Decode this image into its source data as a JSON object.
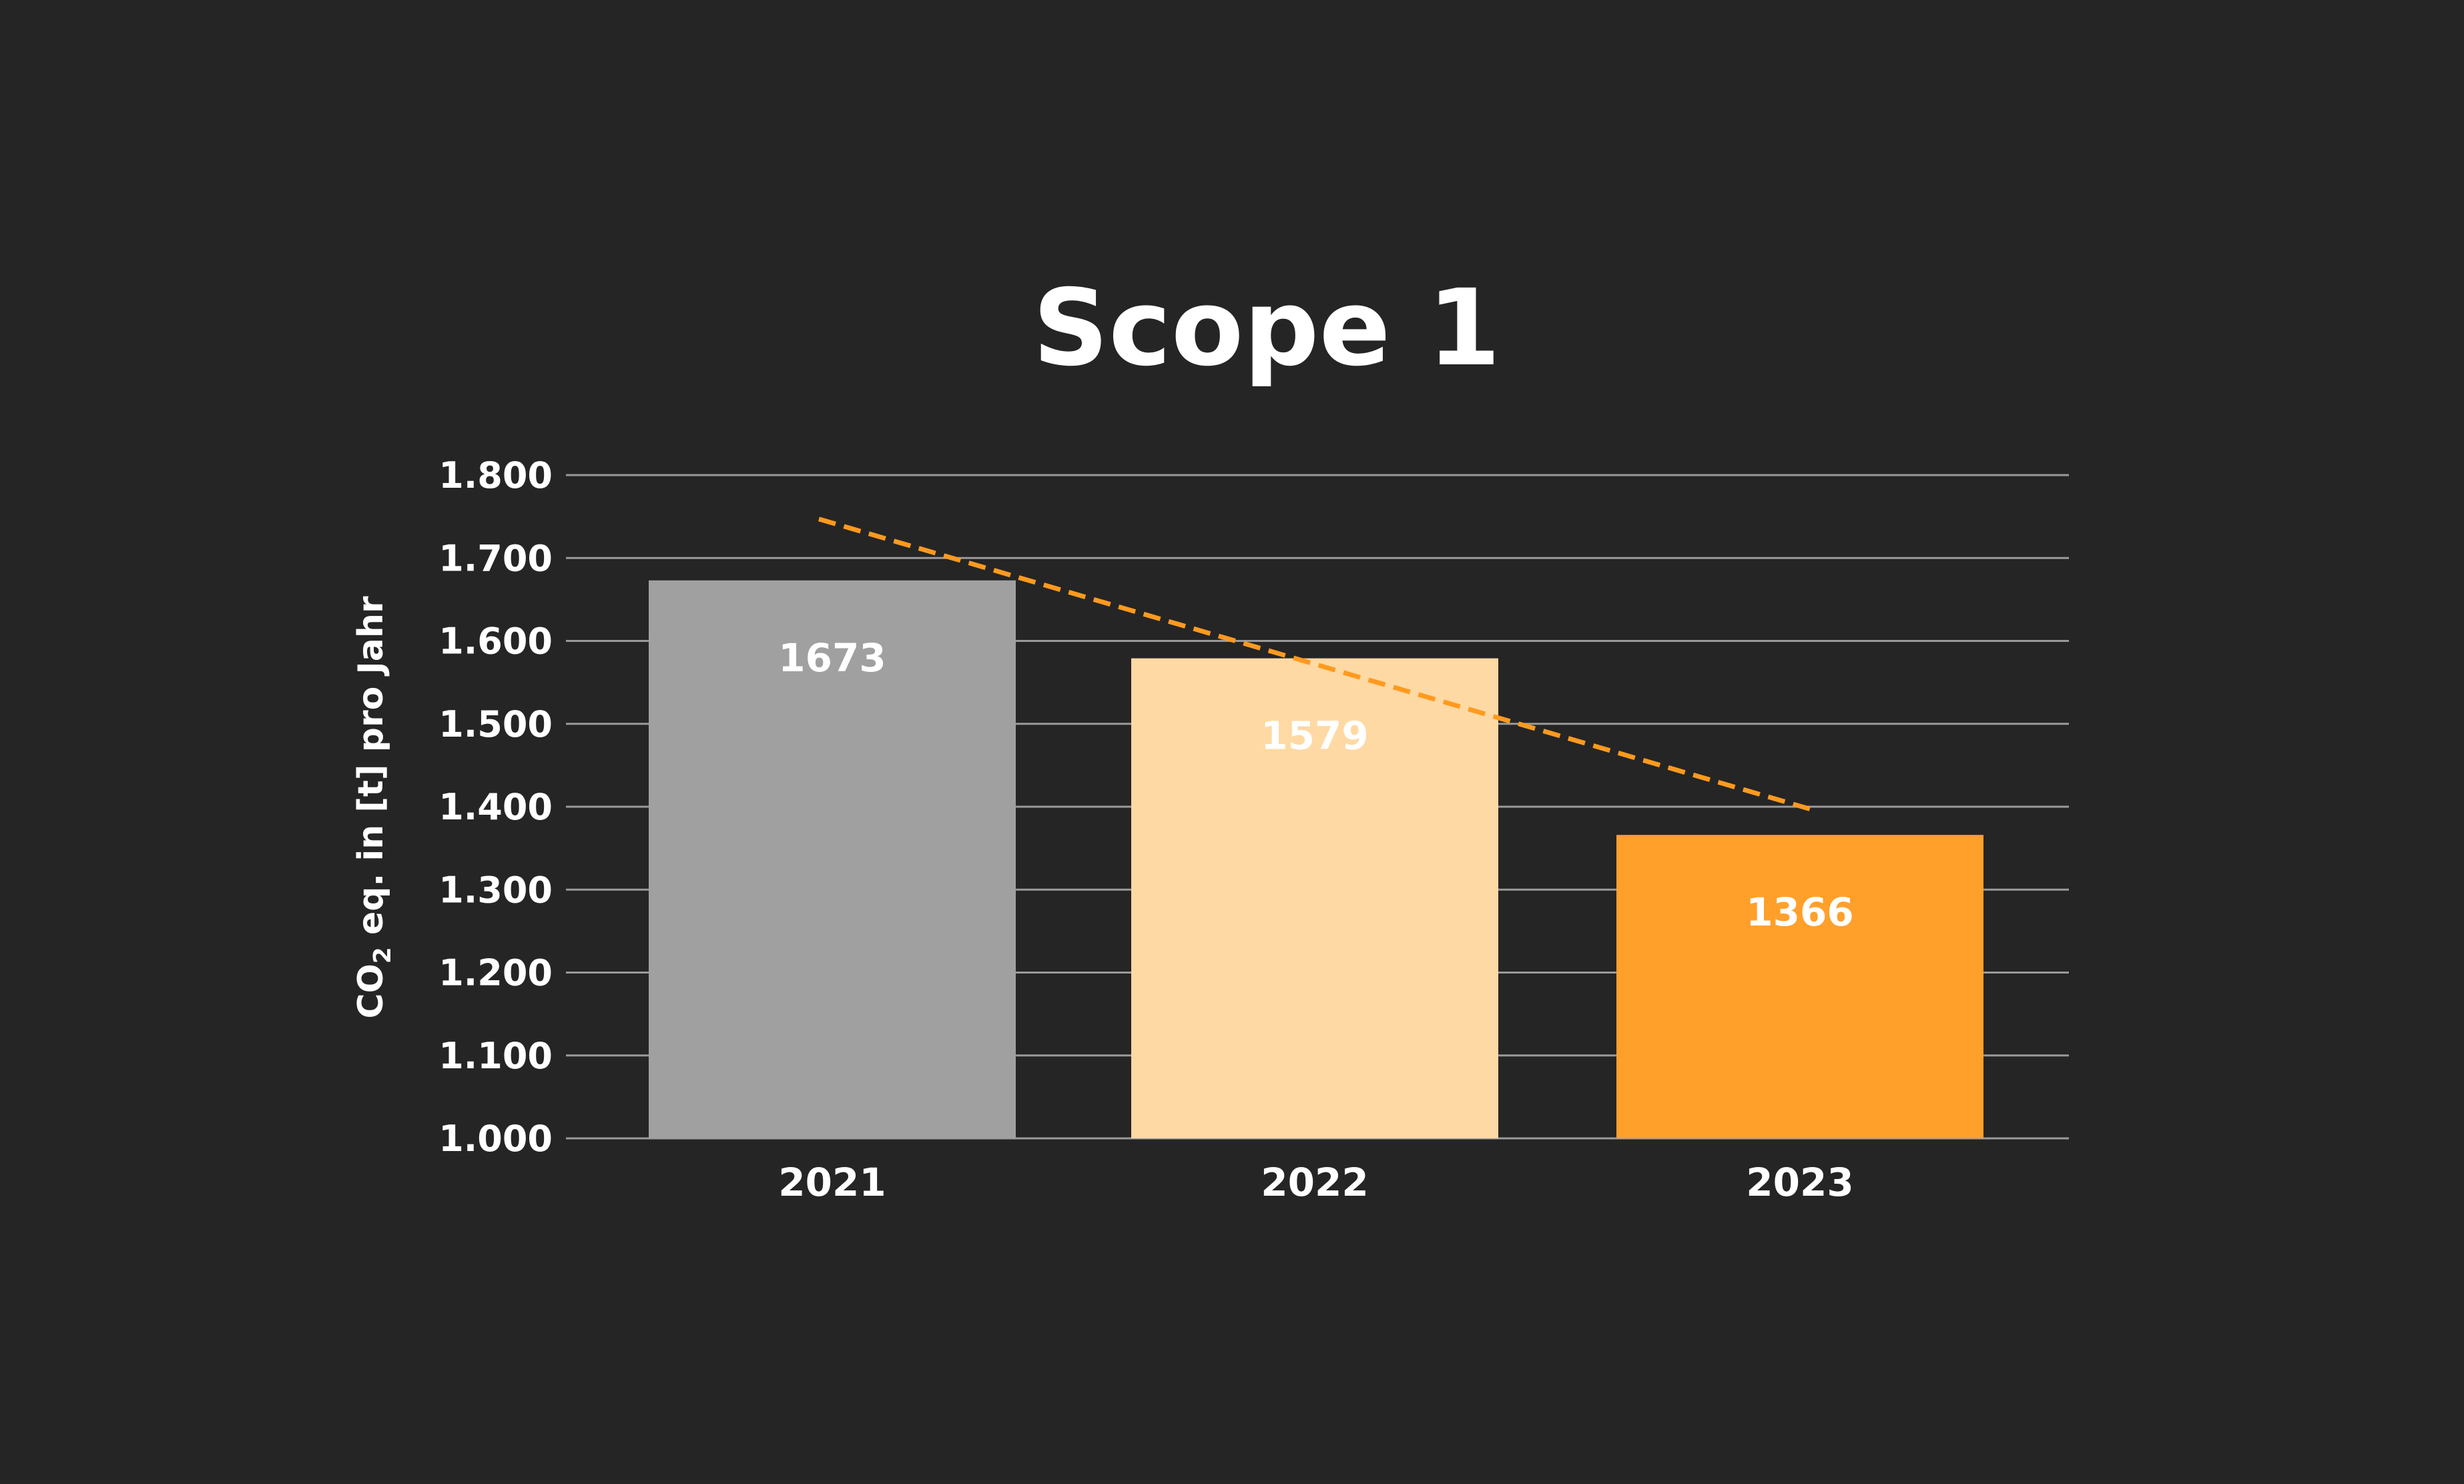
{
  "chart_data": {
    "type": "bar",
    "title": "Scope 1",
    "ylabel": "CO₂ eq. in [t] pro Jahr",
    "ylabel_parts": {
      "pre": "CO",
      "sub": "2",
      "post": " eq. in [t] pro Jahr"
    },
    "xlabel": "",
    "categories": [
      "2021",
      "2022",
      "2023"
    ],
    "values": [
      1673,
      1579,
      1366
    ],
    "data_labels": [
      "1673",
      "1579",
      "1366"
    ],
    "bar_colors": [
      "#a0a0a0",
      "#ffd9a3",
      "#ffa02b"
    ],
    "ylim": [
      1000,
      1800
    ],
    "yticks": [
      1000,
      1100,
      1200,
      1300,
      1400,
      1500,
      1600,
      1700,
      1800
    ],
    "ytick_labels": [
      "1.000",
      "1.100",
      "1.200",
      "1.300",
      "1.400",
      "1.500",
      "1.600",
      "1.700",
      "1.800"
    ],
    "grid": true,
    "legend": "none",
    "trendline": {
      "style": "dashed",
      "color": "#ff9a1f",
      "start": {
        "x": "2021",
        "y": 1747
      },
      "end": {
        "x": "2023",
        "y": 1397
      }
    },
    "background": "#252525"
  }
}
